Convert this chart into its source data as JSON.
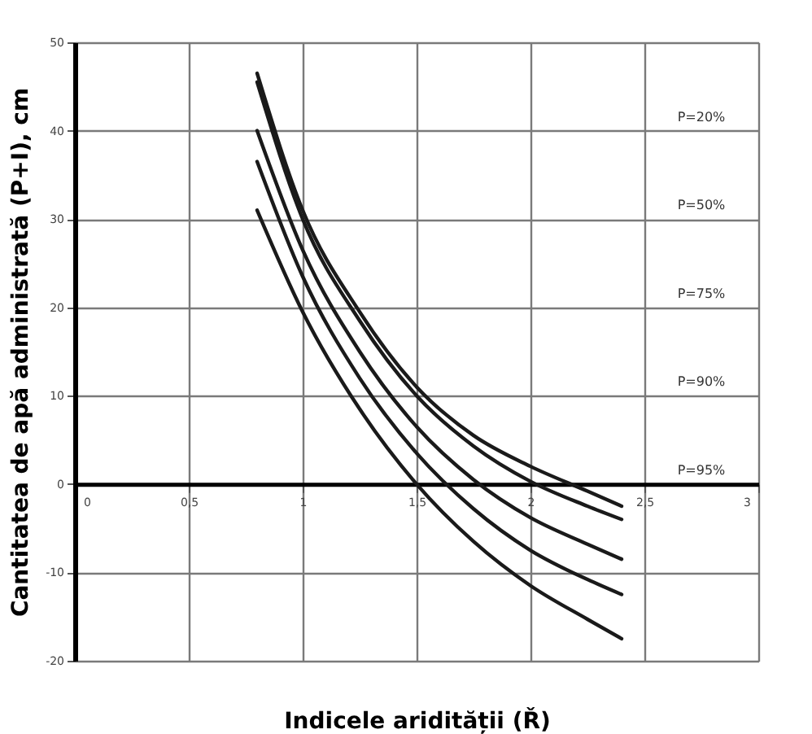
{
  "chart_data": {
    "type": "line",
    "xlabel": "Indicele aridității (Ř)",
    "ylabel": "Cantitatea de apă administrată (P+I), cm",
    "xlim": [
      0,
      3
    ],
    "ylim": [
      -20,
      50
    ],
    "xticks": [
      0,
      {
        "value": 0.5,
        "label": "0,5"
      },
      1,
      {
        "value": 1.5,
        "label": "1,5"
      },
      2,
      {
        "value": 2.5,
        "label": "2,5"
      },
      3
    ],
    "yticks": [
      -20,
      -10,
      0,
      10,
      20,
      30,
      40,
      50
    ],
    "grid": true,
    "legend": false,
    "marker": "none",
    "line_style": "solid",
    "x": [
      0.8,
      1.0,
      1.25,
      1.5,
      1.75,
      2.0,
      2.25,
      2.4
    ],
    "series": [
      {
        "name": "P=20%",
        "color": "#1a1a1a",
        "values": [
          46.5,
          31,
          19.5,
          11,
          5.5,
          2,
          -0.8,
          -2.5
        ]
      },
      {
        "name": "P=50%",
        "color": "#1a1a1a",
        "values": [
          45.5,
          30,
          18.5,
          10,
          4.3,
          0.3,
          -2.5,
          -4
        ]
      },
      {
        "name": "P=75%",
        "color": "#1a1a1a",
        "values": [
          40,
          26.5,
          15,
          6.5,
          0.5,
          -3.8,
          -6.8,
          -8.5
        ]
      },
      {
        "name": "P=90%",
        "color": "#1a1a1a",
        "values": [
          36.5,
          23.5,
          12,
          3.5,
          -2.8,
          -7.5,
          -10.8,
          -12.5
        ]
      },
      {
        "name": "P=95%",
        "color": "#1a1a1a",
        "values": [
          31,
          19.5,
          8.5,
          0,
          -6.5,
          -11.5,
          -15.3,
          -17.5
        ]
      }
    ]
  }
}
